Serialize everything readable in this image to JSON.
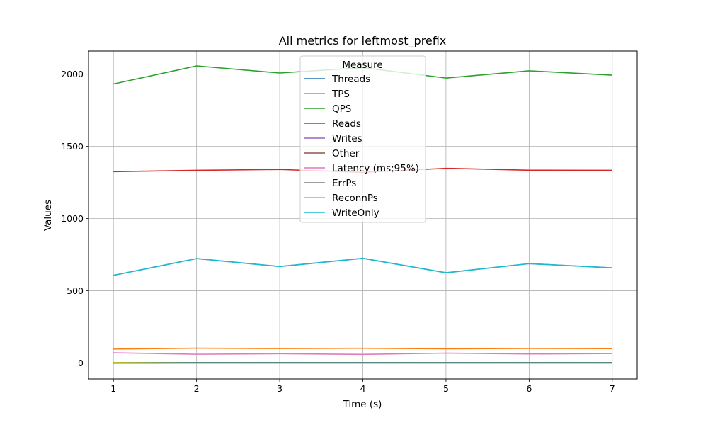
{
  "chart_data": {
    "type": "line",
    "title": "All metrics for leftmost_prefix",
    "xlabel": "Time (s)",
    "ylabel": "Values",
    "x": [
      1,
      2,
      3,
      4,
      5,
      6,
      7
    ],
    "xlim": [
      0.7,
      7.3
    ],
    "ylim": [
      -110,
      2160
    ],
    "xticks": [
      "1",
      "2",
      "3",
      "4",
      "5",
      "6",
      "7"
    ],
    "yticks": [
      0,
      500,
      1000,
      1500,
      2000
    ],
    "grid": true,
    "legend": {
      "title": "Measure",
      "placement": "upper-center"
    },
    "series": [
      {
        "name": "Threads",
        "color": "#1f77b4",
        "values": [
          4,
          4,
          4,
          4,
          4,
          4,
          4
        ]
      },
      {
        "name": "TPS",
        "color": "#ff7f0e",
        "values": [
          96.5,
          102.8,
          100.4,
          102.2,
          98.7,
          101.1,
          99.6
        ]
      },
      {
        "name": "QPS",
        "color": "#2ca02c",
        "values": [
          1932,
          2057,
          2008,
          2045,
          1973,
          2023,
          1993
        ]
      },
      {
        "name": "Reads",
        "color": "#d62728",
        "values": [
          1325,
          1334,
          1340,
          1320,
          1348,
          1335,
          1334
        ]
      },
      {
        "name": "Writes",
        "color": "#9467bd",
        "values": [
          607,
          723,
          668,
          725,
          625,
          688,
          659
        ]
      },
      {
        "name": "Other",
        "color": "#8c564b",
        "values": [
          0,
          0,
          0,
          0,
          0,
          0,
          0
        ]
      },
      {
        "name": "Latency (ms;95%)",
        "color": "#e377c2",
        "values": [
          71,
          61,
          65,
          60,
          69,
          63,
          66
        ]
      },
      {
        "name": "ErrPs",
        "color": "#7f7f7f",
        "values": [
          0,
          0,
          0,
          0,
          0,
          0,
          0
        ]
      },
      {
        "name": "ReconnPs",
        "color": "#bcbd22",
        "values": [
          4,
          0,
          0,
          0,
          0,
          0,
          0
        ]
      },
      {
        "name": "WriteOnly",
        "color": "#17becf",
        "values": [
          607,
          723,
          668,
          725,
          625,
          688,
          659
        ]
      }
    ]
  }
}
